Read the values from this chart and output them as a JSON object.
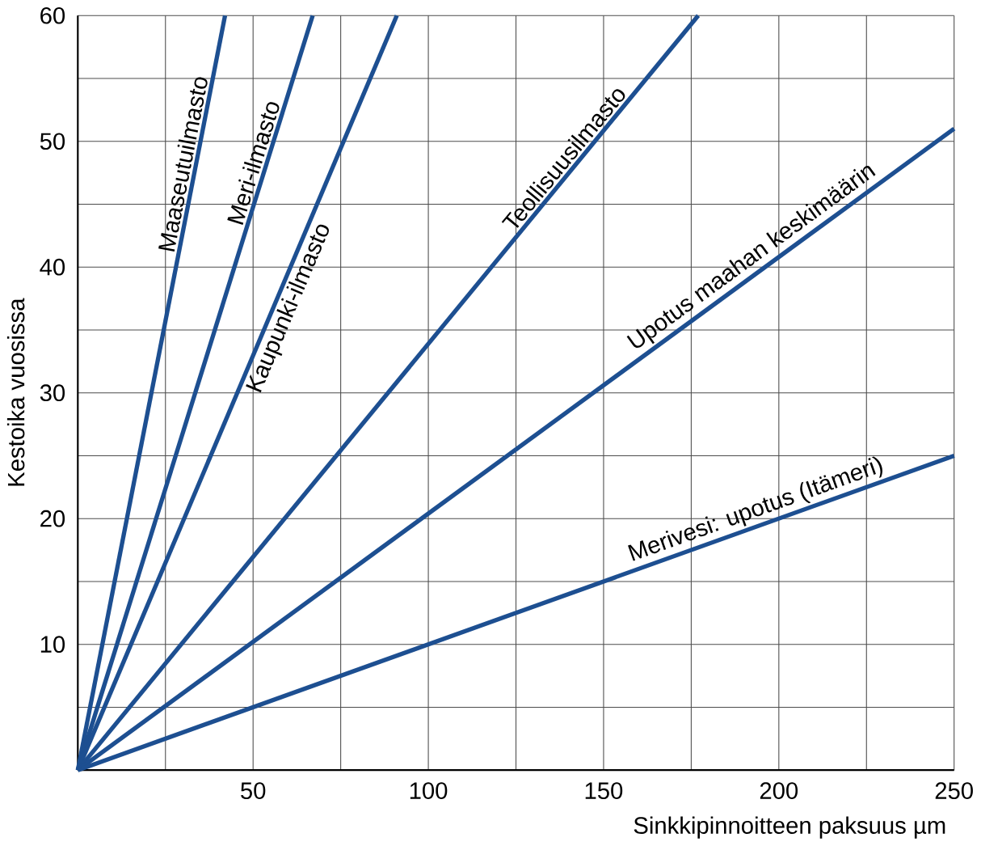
{
  "chart_data": {
    "type": "line",
    "xlabel": "Sinkkipinnoitteen paksuus µm",
    "ylabel": "Kestoika vuosissa",
    "xlim": [
      0,
      250
    ],
    "ylim": [
      0,
      60
    ],
    "xticks": [
      {
        "value": 0,
        "label": null
      },
      {
        "value": 25,
        "label": null
      },
      50,
      {
        "value": 75,
        "label": null
      },
      100,
      {
        "value": 125,
        "label": null
      },
      150,
      {
        "value": 175,
        "label": null
      },
      200,
      {
        "value": 225,
        "label": null
      },
      250
    ],
    "yticks": [
      {
        "value": 0,
        "label": null
      },
      {
        "value": 5,
        "label": null
      },
      10,
      {
        "value": 15,
        "label": null
      },
      20,
      {
        "value": 25,
        "label": null
      },
      30,
      {
        "value": 35,
        "label": null
      },
      40,
      {
        "value": 45,
        "label": null
      },
      50,
      {
        "value": 55,
        "label": null
      },
      60
    ],
    "grid": true,
    "marker": "none",
    "line_style": "solid",
    "series": [
      {
        "name": "Maaseutuilmasto",
        "color": "#1d4f91",
        "x": [
          0,
          42
        ],
        "values": [
          0,
          60
        ]
      },
      {
        "name": "Meri-ilmasto",
        "color": "#1d4f91",
        "x": [
          0,
          67
        ],
        "values": [
          0,
          60
        ]
      },
      {
        "name": "Kaupunki-ilmasto",
        "color": "#1d4f91",
        "x": [
          0,
          91
        ],
        "values": [
          0,
          60
        ]
      },
      {
        "name": "Teollisuusilmasto",
        "color": "#1d4f91",
        "x": [
          0,
          177
        ],
        "values": [
          0,
          60
        ]
      },
      {
        "name": "Upotus maahan keskimäärin",
        "color": "#1d4f91",
        "x": [
          0,
          250
        ],
        "values": [
          0,
          51
        ]
      },
      {
        "name": "Merivesi: upotus (Itämeri)",
        "color": "#1d4f91",
        "x": [
          0,
          250
        ],
        "values": [
          0,
          25
        ]
      }
    ]
  }
}
